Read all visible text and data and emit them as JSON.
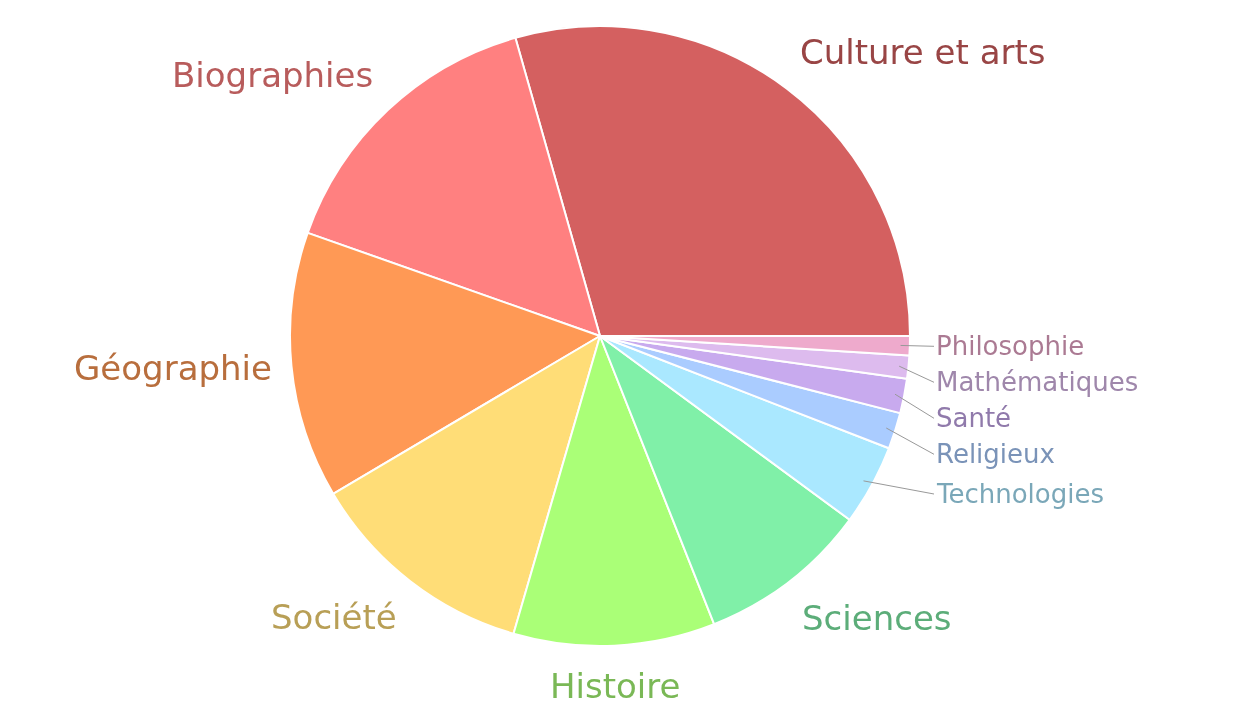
{
  "chart_data": {
    "type": "pie",
    "categories": [
      "Culture et arts",
      "Biographies",
      "Géographie",
      "Société",
      "Histoire",
      "Sciences",
      "Technologies",
      "Religieux",
      "Santé",
      "Mathématiques",
      "Philosophie"
    ],
    "values": [
      29.4,
      15.2,
      13.9,
      12.0,
      10.5,
      8.9,
      4.2,
      1.9,
      1.8,
      1.2,
      1.0
    ],
    "colors": [
      "#d46060",
      "#ff8080",
      "#ff9955",
      "#ffdd77",
      "#aaff77",
      "#80f0a8",
      "#aae8ff",
      "#aaccff",
      "#c8aaee",
      "#ddbbee",
      "#eeaacc"
    ],
    "legend": false
  }
}
